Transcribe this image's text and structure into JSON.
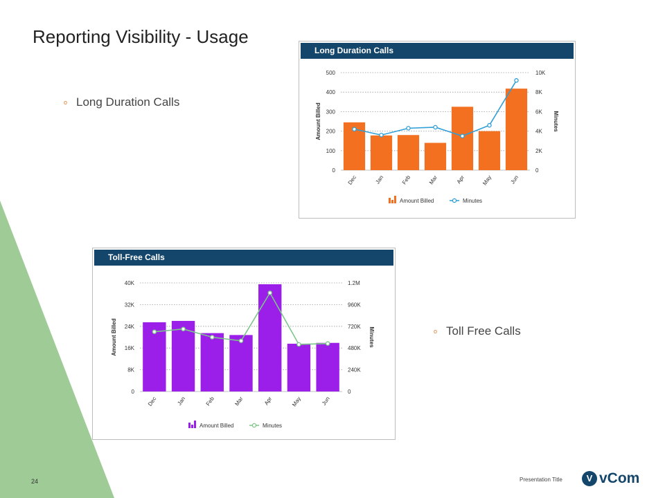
{
  "slide": {
    "title": "Reporting Visibility - Usage",
    "bullets": [
      "Long Duration Calls",
      "Toll Free Calls"
    ],
    "bullet_glyph": "o",
    "page_number": "24",
    "footer_text": "Presentation Title",
    "logo_glyph": "V",
    "logo_text": "vCom",
    "accent_green": "#9ecb96",
    "brand_blue": "#14466b"
  },
  "chart_data": [
    {
      "type": "bar+line",
      "title": "Long Duration Calls",
      "categories": [
        "Dec",
        "Jan",
        "Feb",
        "Mar",
        "Apr",
        "May",
        "Jun"
      ],
      "series": [
        {
          "name": "Amount Billed",
          "type": "bar",
          "axis": "left",
          "color": "#f37021",
          "values": [
            245,
            178,
            180,
            140,
            325,
            200,
            418
          ]
        },
        {
          "name": "Minutes",
          "type": "line",
          "axis": "right",
          "color": "#2e9fd6",
          "values": [
            4200,
            3600,
            4300,
            4400,
            3500,
            4600,
            9200
          ]
        }
      ],
      "ylabel": "Amount Billed",
      "y2label": "Minutes",
      "ylim": [
        0,
        500
      ],
      "y2lim": [
        0,
        10000
      ],
      "yticks": [
        "0",
        "100",
        "200",
        "300",
        "400",
        "500"
      ],
      "y2ticks": [
        "0",
        "2K",
        "4K",
        "6K",
        "8K",
        "10K"
      ],
      "grid": true,
      "legend": "bottom-center"
    },
    {
      "type": "bar+line",
      "title": "Toll-Free Calls",
      "categories": [
        "Dec",
        "Jan",
        "Feb",
        "Mar",
        "Apr",
        "May",
        "Jun"
      ],
      "series": [
        {
          "name": "Amount Billed",
          "type": "bar",
          "axis": "left",
          "color": "#9b1fe8",
          "values": [
            25500,
            26000,
            21500,
            20800,
            39500,
            17600,
            17900
          ]
        },
        {
          "name": "Minutes",
          "type": "line",
          "axis": "right",
          "color": "#7cc58a",
          "values": [
            660000,
            690000,
            600000,
            560000,
            1090000,
            520000,
            530000
          ]
        }
      ],
      "ylabel": "Amount Billed",
      "y2label": "Minutes",
      "ylim": [
        0,
        40000
      ],
      "y2lim": [
        0,
        1200000
      ],
      "yticks": [
        "0",
        "8K",
        "16K",
        "24K",
        "32K",
        "40K"
      ],
      "y2ticks": [
        "0",
        "240K",
        "480K",
        "720K",
        "960K",
        "1.2M"
      ],
      "grid": true,
      "legend": "bottom-center"
    }
  ]
}
